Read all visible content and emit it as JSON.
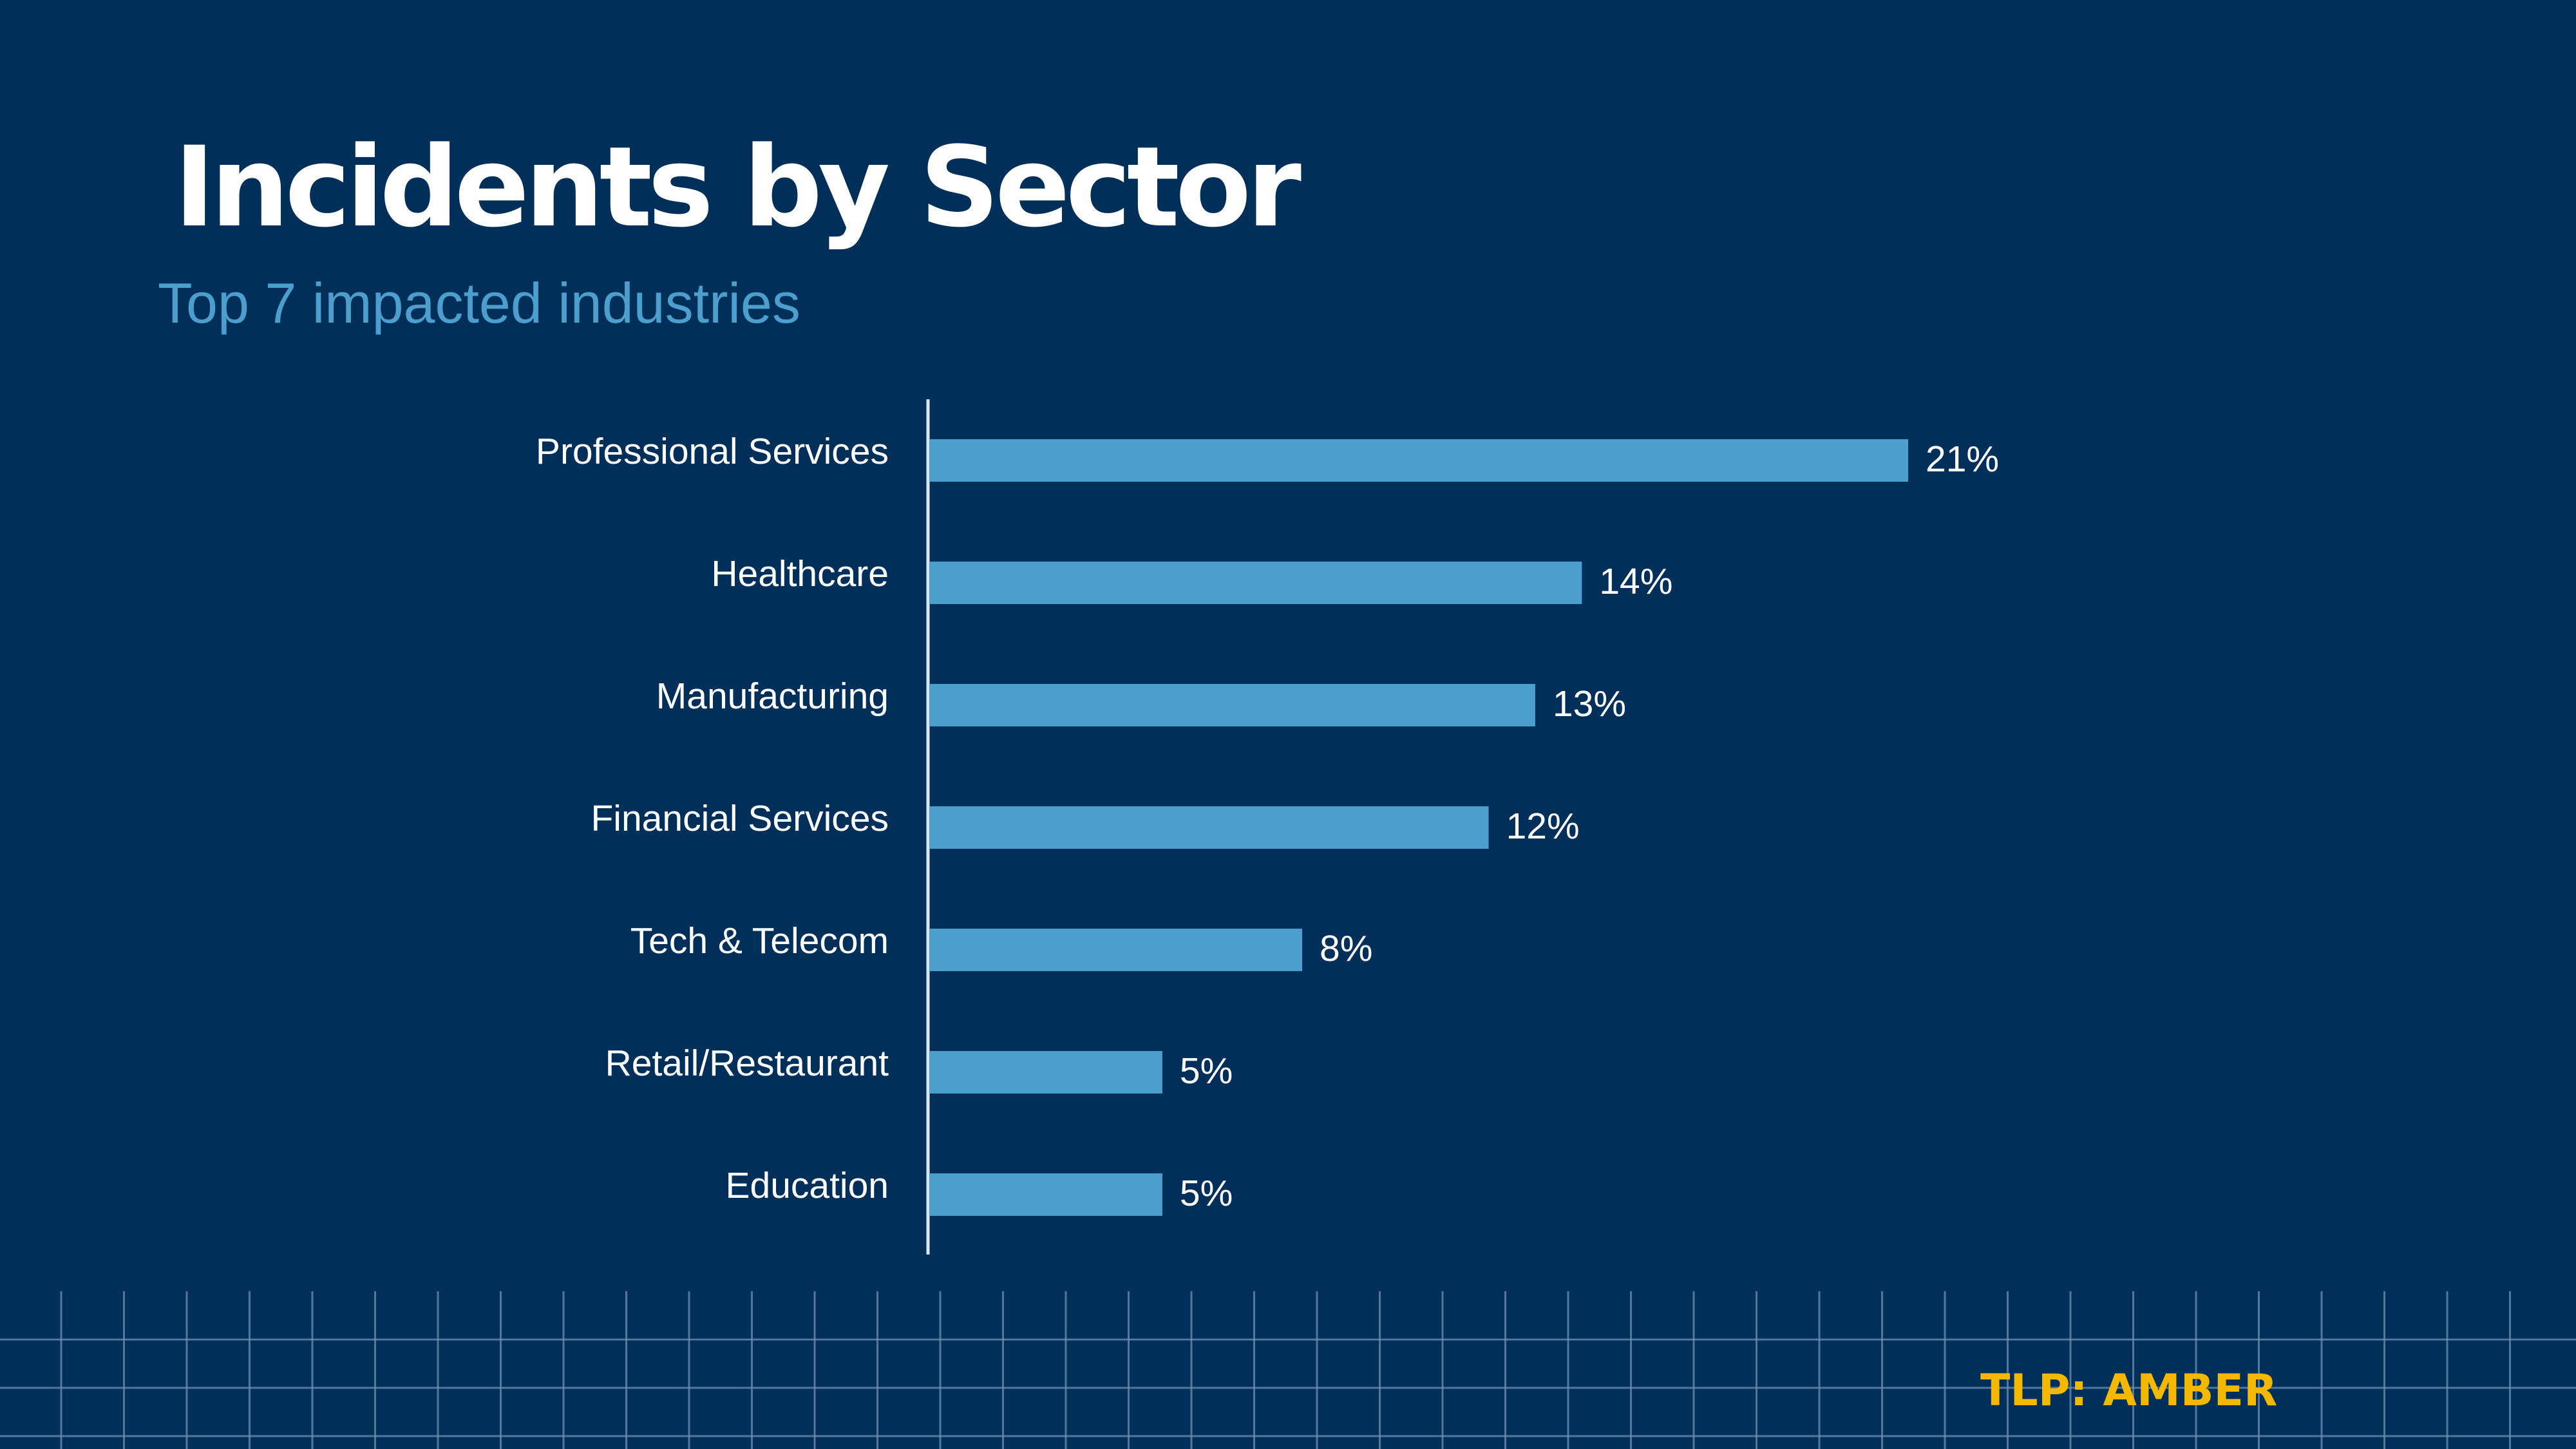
{
  "slide": {
    "title": "Incidents by Sector",
    "subtitle": "Top 7 impacted industries",
    "classification": "TLP: AMBER"
  },
  "colors": {
    "background": "#002f59",
    "bar": "#4c9fcc",
    "subtitle": "#4c9fcc",
    "classification": "#f5b800",
    "text": "#ffffff"
  },
  "chart_data": {
    "type": "bar",
    "orientation": "horizontal",
    "categories": [
      "Professional Services",
      "Healthcare",
      "Manufacturing",
      "Financial Services",
      "Tech & Telecom",
      "Retail/Restaurant",
      "Education"
    ],
    "values": [
      21,
      14,
      13,
      12,
      8,
      5,
      5
    ],
    "value_labels": [
      "21%",
      "14%",
      "13%",
      "12%",
      "8%",
      "5%",
      "5%"
    ],
    "unit": "%",
    "xlim": [
      0,
      21
    ],
    "grid": false,
    "legend": "none"
  }
}
